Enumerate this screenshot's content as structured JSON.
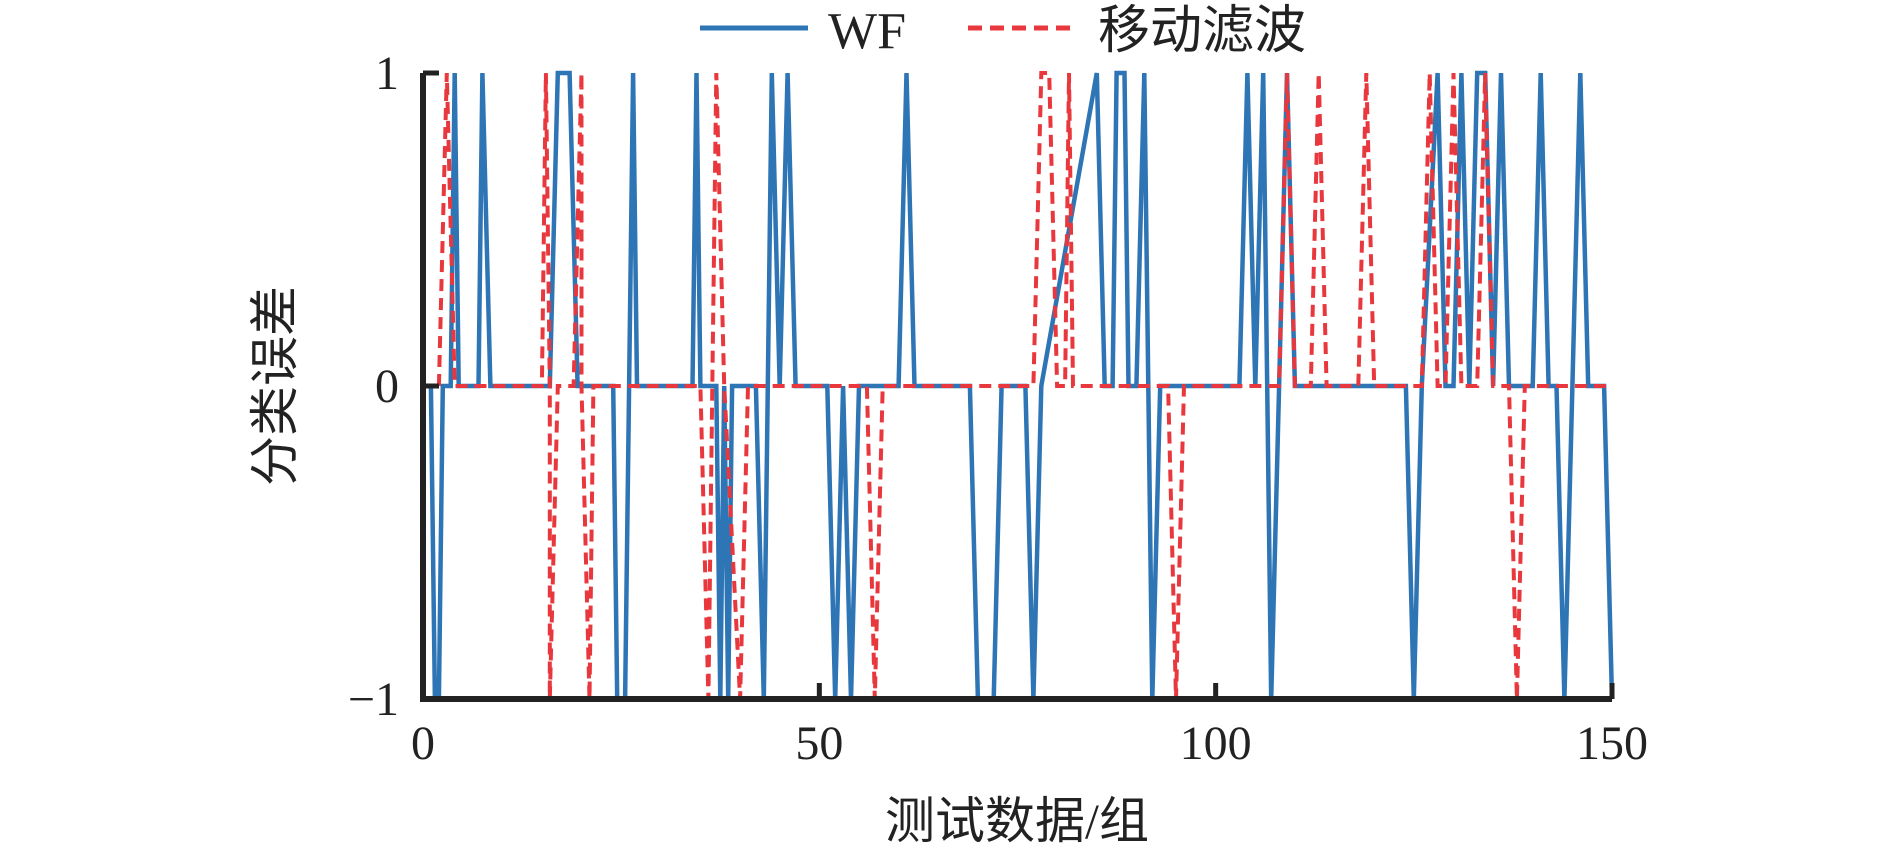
{
  "chart_data": {
    "type": "line",
    "xlabel": "测试数据/组",
    "ylabel": "分类误差",
    "xlim": [
      0,
      150
    ],
    "ylim": [
      -1,
      1
    ],
    "xticks": [
      "0",
      "50",
      "100",
      "150"
    ],
    "yticks": [
      "−1",
      "0",
      "1"
    ],
    "legend_position": "top",
    "grid": false,
    "series": [
      {
        "name": "WF",
        "color": "#2e75b6",
        "style": "solid",
        "points": [
          [
            1,
            0
          ],
          [
            1.5,
            -1
          ],
          [
            2,
            -1
          ],
          [
            2.5,
            0
          ],
          [
            3.5,
            0
          ],
          [
            4,
            1
          ],
          [
            4.5,
            0
          ],
          [
            7,
            0
          ],
          [
            7.5,
            1
          ],
          [
            8.5,
            0
          ],
          [
            16,
            0
          ],
          [
            17,
            1
          ],
          [
            18.5,
            1
          ],
          [
            19.5,
            0
          ],
          [
            22,
            0
          ],
          [
            24,
            0
          ],
          [
            24.5,
            -1
          ],
          [
            25.5,
            -1
          ],
          [
            26,
            0
          ],
          [
            26.5,
            1
          ],
          [
            27,
            0
          ],
          [
            34,
            0
          ],
          [
            34.5,
            1
          ],
          [
            35,
            0
          ],
          [
            37,
            0
          ],
          [
            37.5,
            -1
          ],
          [
            38,
            0
          ],
          [
            38.5,
            -1
          ],
          [
            39,
            0
          ],
          [
            42,
            0
          ],
          [
            43,
            -1
          ],
          [
            44,
            1
          ],
          [
            45,
            0
          ],
          [
            46,
            1
          ],
          [
            47,
            0
          ],
          [
            51,
            0
          ],
          [
            52,
            -1
          ],
          [
            53,
            0
          ],
          [
            54,
            -1
          ],
          [
            55,
            0
          ],
          [
            60,
            0
          ],
          [
            61,
            1
          ],
          [
            62,
            0
          ],
          [
            69,
            0
          ],
          [
            70,
            -1
          ],
          [
            72,
            -1
          ],
          [
            73,
            0
          ],
          [
            76,
            0
          ],
          [
            77,
            -1
          ],
          [
            78,
            0
          ],
          [
            85,
            1
          ],
          [
            86,
            0
          ],
          [
            87,
            0
          ],
          [
            87.5,
            1
          ],
          [
            88.5,
            1
          ],
          [
            89,
            0
          ],
          [
            90,
            0
          ],
          [
            91,
            1
          ],
          [
            92,
            -1
          ],
          [
            93,
            0
          ],
          [
            103,
            0
          ],
          [
            104,
            1
          ],
          [
            105,
            0
          ],
          [
            106,
            1
          ],
          [
            107,
            -1
          ],
          [
            108,
            0
          ],
          [
            109,
            1
          ],
          [
            110,
            0
          ],
          [
            124,
            0
          ],
          [
            125,
            -1
          ],
          [
            126,
            0
          ],
          [
            128,
            1
          ],
          [
            129,
            0
          ],
          [
            130,
            0
          ],
          [
            131,
            1
          ],
          [
            132,
            0
          ],
          [
            133,
            1
          ],
          [
            134,
            1
          ],
          [
            135,
            0
          ],
          [
            136,
            1
          ],
          [
            137,
            0
          ],
          [
            140,
            0
          ],
          [
            141,
            1
          ],
          [
            142,
            0
          ],
          [
            143,
            0
          ],
          [
            144,
            -1
          ],
          [
            145,
            0
          ],
          [
            146,
            1
          ],
          [
            147,
            0
          ],
          [
            149,
            0
          ],
          [
            150,
            -1
          ]
        ]
      },
      {
        "name": "移动滤波",
        "color": "#e8383d",
        "style": "dashed",
        "points": [
          [
            2,
            0
          ],
          [
            3,
            1
          ],
          [
            4,
            0
          ],
          [
            15,
            0
          ],
          [
            15.5,
            1
          ],
          [
            16,
            0
          ],
          [
            16,
            -1
          ],
          [
            17,
            0
          ],
          [
            19,
            0
          ],
          [
            20,
            1
          ],
          [
            20,
            0
          ],
          [
            21,
            -1
          ],
          [
            21.5,
            0
          ],
          [
            35,
            0
          ],
          [
            36,
            -1
          ],
          [
            36.5,
            0
          ],
          [
            37,
            1
          ],
          [
            38,
            0
          ],
          [
            40,
            -1
          ],
          [
            41,
            0
          ],
          [
            56,
            0
          ],
          [
            57,
            -1
          ],
          [
            58,
            0
          ],
          [
            77,
            0
          ],
          [
            78,
            1
          ],
          [
            79,
            1
          ],
          [
            80,
            0
          ],
          [
            81,
            0
          ],
          [
            81.5,
            1
          ],
          [
            82,
            0
          ],
          [
            94,
            0
          ],
          [
            95,
            -1
          ],
          [
            96,
            0
          ],
          [
            108,
            0
          ],
          [
            109,
            1
          ],
          [
            110,
            0
          ],
          [
            112,
            0
          ],
          [
            113,
            1
          ],
          [
            114,
            0
          ],
          [
            118,
            0
          ],
          [
            119,
            1
          ],
          [
            120,
            0
          ],
          [
            126,
            0
          ],
          [
            127,
            1
          ],
          [
            128,
            0
          ],
          [
            129,
            0
          ],
          [
            130,
            1
          ],
          [
            131,
            0
          ],
          [
            133,
            0
          ],
          [
            134,
            1
          ],
          [
            135,
            0
          ],
          [
            137,
            0
          ],
          [
            138,
            -1
          ],
          [
            139,
            0
          ],
          [
            150,
            0
          ]
        ]
      }
    ]
  }
}
